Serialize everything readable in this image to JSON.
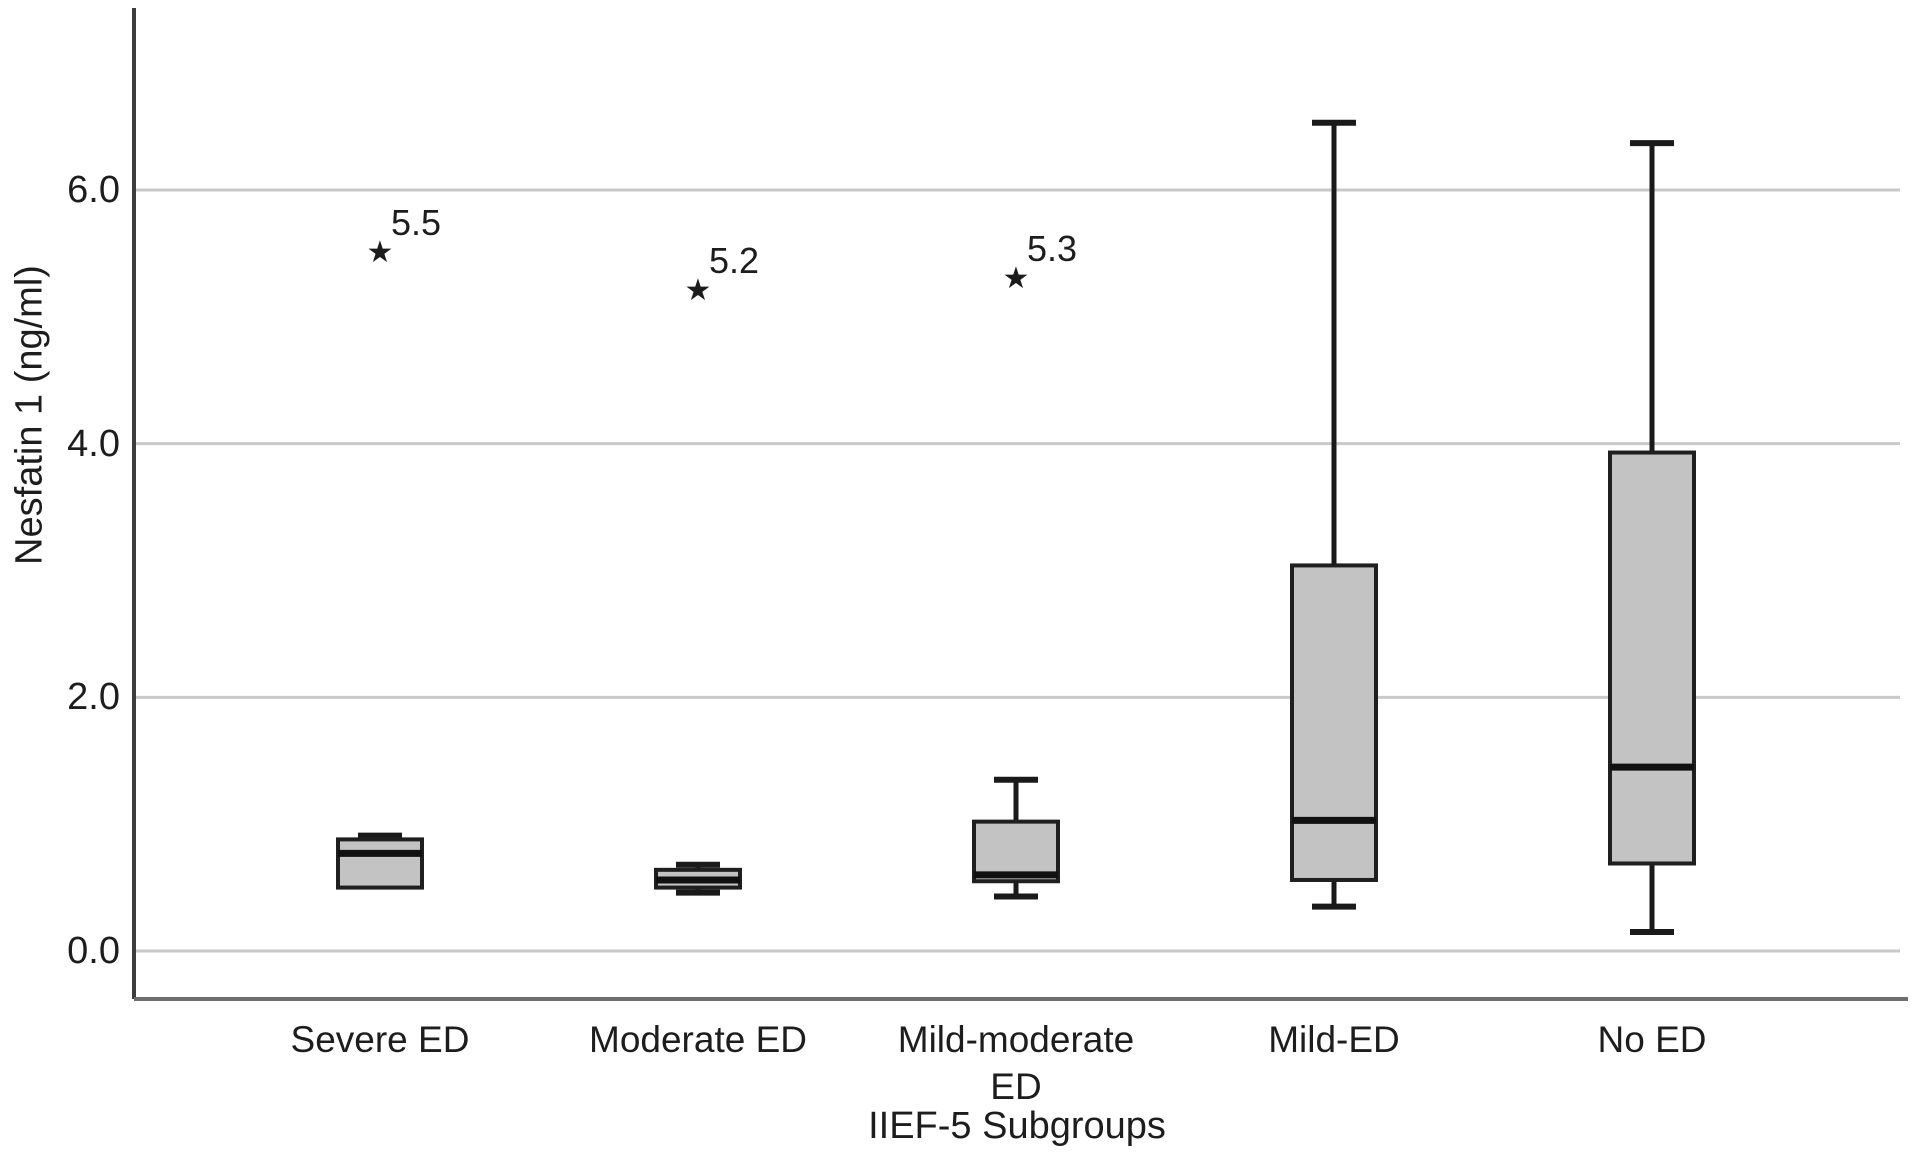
{
  "chart_data": {
    "type": "boxplot",
    "title": "",
    "xlabel": "IIEF-5 Subgroups",
    "ylabel": "Nesfatin 1 (ng/ml)",
    "ylim": [
      -0.4,
      7.4
    ],
    "grid": "horizontal",
    "legend": "none",
    "yticks": [
      {
        "value": 0.0,
        "label": "0.0"
      },
      {
        "value": 2.0,
        "label": "2.0"
      },
      {
        "value": 4.0,
        "label": "4.0"
      },
      {
        "value": 6.0,
        "label": "6.0"
      }
    ],
    "categories": [
      "Severe ED",
      "Moderate ED",
      "Mild-moderate ED",
      "Mild-ED",
      "No ED"
    ],
    "category_label_lines": [
      [
        "Severe ED"
      ],
      [
        "Moderate ED"
      ],
      [
        "Mild-moderate",
        "ED"
      ],
      [
        "Mild-ED"
      ],
      [
        "No ED"
      ]
    ],
    "boxes": [
      {
        "category": "Severe ED",
        "whisker_low": 0.5,
        "q1": 0.5,
        "median": 0.77,
        "q3": 0.88,
        "whisker_high": 0.91,
        "outliers": [
          {
            "value": 5.5,
            "label": "5.5"
          }
        ]
      },
      {
        "category": "Moderate ED",
        "whisker_low": 0.46,
        "q1": 0.5,
        "median": 0.56,
        "q3": 0.64,
        "whisker_high": 0.68,
        "outliers": [
          {
            "value": 5.2,
            "label": "5.2"
          }
        ]
      },
      {
        "category": "Mild-moderate ED",
        "whisker_low": 0.43,
        "q1": 0.55,
        "median": 0.6,
        "q3": 1.02,
        "whisker_high": 1.35,
        "outliers": [
          {
            "value": 5.3,
            "label": "5.3"
          }
        ]
      },
      {
        "category": "Mild-ED",
        "whisker_low": 0.35,
        "q1": 0.56,
        "median": 1.03,
        "q3": 3.04,
        "whisker_high": 6.53,
        "outliers": []
      },
      {
        "category": "No ED",
        "whisker_low": 0.15,
        "q1": 0.69,
        "median": 1.45,
        "q3": 3.93,
        "whisker_high": 6.37,
        "outliers": []
      }
    ],
    "outlier_marker": "★",
    "colors": {
      "box_fill": "#c3c3c3",
      "box_border": "#1f1f1f",
      "median": "#111111",
      "whisker": "#1a1a1a",
      "gridline": "#c9c9c9",
      "axis_line": "#3d3d3d",
      "frame_line": "#6e6e6e",
      "text": "#1d1d1d",
      "background": "#ffffff"
    }
  }
}
